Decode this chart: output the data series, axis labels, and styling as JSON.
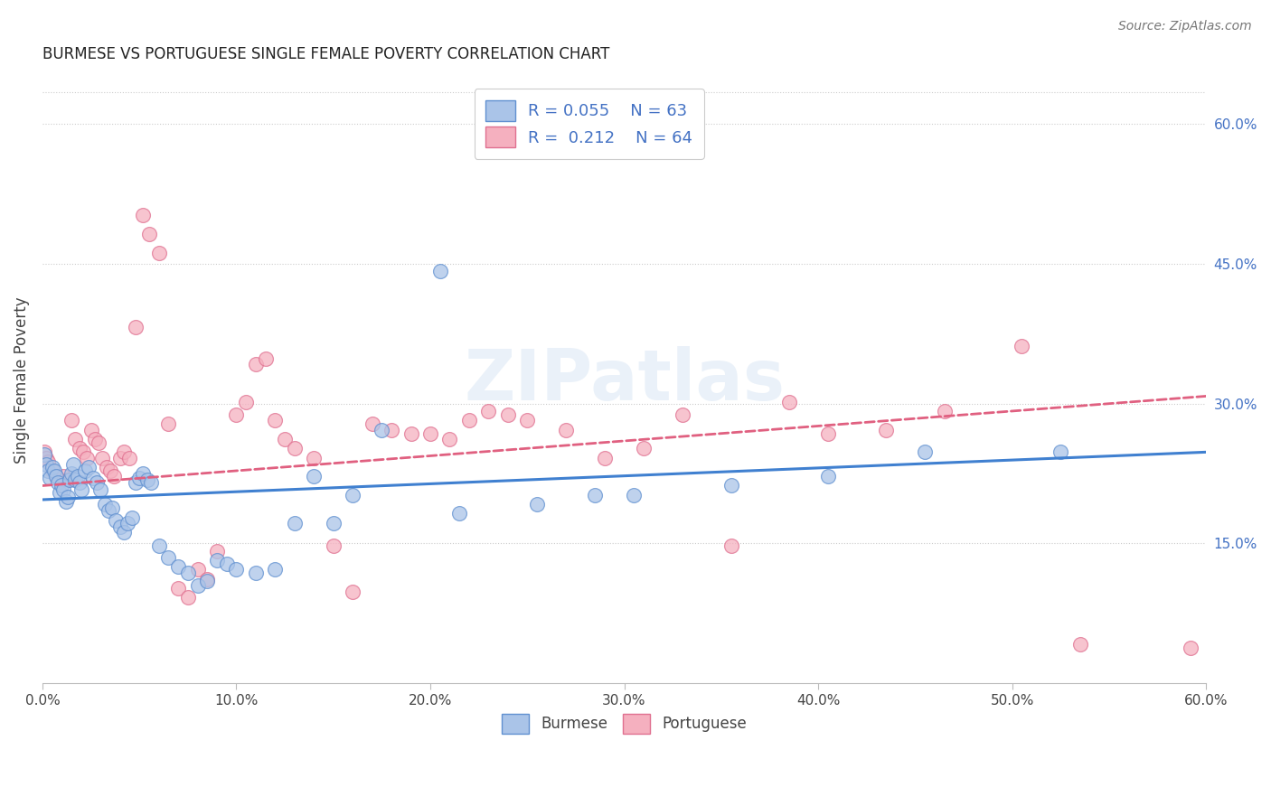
{
  "title": "BURMESE VS PORTUGUESE SINGLE FEMALE POVERTY CORRELATION CHART",
  "source": "Source: ZipAtlas.com",
  "ylabel": "Single Female Poverty",
  "right_yticks": [
    "15.0%",
    "30.0%",
    "45.0%",
    "60.0%"
  ],
  "right_ytick_vals": [
    0.15,
    0.3,
    0.45,
    0.6
  ],
  "watermark": "ZIPatlas",
  "burmese_R": "0.055",
  "burmese_N": "63",
  "portuguese_R": "0.212",
  "portuguese_N": "64",
  "burmese_color": "#aac4e8",
  "portuguese_color": "#f5b0bf",
  "burmese_edge_color": "#6090d0",
  "portuguese_edge_color": "#e07090",
  "burmese_line_color": "#4080d0",
  "portuguese_line_color": "#e06080",
  "burmese_scatter": [
    [
      0.001,
      0.245
    ],
    [
      0.002,
      0.235
    ],
    [
      0.003,
      0.228
    ],
    [
      0.004,
      0.22
    ],
    [
      0.005,
      0.232
    ],
    [
      0.006,
      0.228
    ],
    [
      0.007,
      0.222
    ],
    [
      0.008,
      0.215
    ],
    [
      0.009,
      0.205
    ],
    [
      0.01,
      0.212
    ],
    [
      0.011,
      0.208
    ],
    [
      0.012,
      0.195
    ],
    [
      0.013,
      0.2
    ],
    [
      0.014,
      0.218
    ],
    [
      0.015,
      0.225
    ],
    [
      0.016,
      0.235
    ],
    [
      0.017,
      0.218
    ],
    [
      0.018,
      0.222
    ],
    [
      0.019,
      0.215
    ],
    [
      0.02,
      0.208
    ],
    [
      0.022,
      0.228
    ],
    [
      0.024,
      0.232
    ],
    [
      0.026,
      0.22
    ],
    [
      0.028,
      0.215
    ],
    [
      0.03,
      0.208
    ],
    [
      0.032,
      0.192
    ],
    [
      0.034,
      0.185
    ],
    [
      0.036,
      0.188
    ],
    [
      0.038,
      0.175
    ],
    [
      0.04,
      0.168
    ],
    [
      0.042,
      0.162
    ],
    [
      0.044,
      0.172
    ],
    [
      0.046,
      0.178
    ],
    [
      0.048,
      0.215
    ],
    [
      0.05,
      0.22
    ],
    [
      0.052,
      0.225
    ],
    [
      0.054,
      0.218
    ],
    [
      0.056,
      0.215
    ],
    [
      0.06,
      0.148
    ],
    [
      0.065,
      0.135
    ],
    [
      0.07,
      0.125
    ],
    [
      0.075,
      0.118
    ],
    [
      0.08,
      0.105
    ],
    [
      0.085,
      0.11
    ],
    [
      0.09,
      0.132
    ],
    [
      0.095,
      0.128
    ],
    [
      0.1,
      0.122
    ],
    [
      0.11,
      0.118
    ],
    [
      0.12,
      0.122
    ],
    [
      0.13,
      0.172
    ],
    [
      0.14,
      0.222
    ],
    [
      0.15,
      0.172
    ],
    [
      0.16,
      0.202
    ],
    [
      0.175,
      0.272
    ],
    [
      0.205,
      0.442
    ],
    [
      0.215,
      0.182
    ],
    [
      0.255,
      0.192
    ],
    [
      0.285,
      0.202
    ],
    [
      0.305,
      0.202
    ],
    [
      0.355,
      0.212
    ],
    [
      0.405,
      0.222
    ],
    [
      0.455,
      0.248
    ],
    [
      0.525,
      0.248
    ]
  ],
  "portuguese_scatter": [
    [
      0.001,
      0.248
    ],
    [
      0.002,
      0.242
    ],
    [
      0.003,
      0.238
    ],
    [
      0.005,
      0.228
    ],
    [
      0.007,
      0.222
    ],
    [
      0.009,
      0.218
    ],
    [
      0.011,
      0.222
    ],
    [
      0.013,
      0.218
    ],
    [
      0.015,
      0.282
    ],
    [
      0.017,
      0.262
    ],
    [
      0.019,
      0.252
    ],
    [
      0.021,
      0.248
    ],
    [
      0.023,
      0.242
    ],
    [
      0.025,
      0.272
    ],
    [
      0.027,
      0.262
    ],
    [
      0.029,
      0.258
    ],
    [
      0.031,
      0.242
    ],
    [
      0.033,
      0.232
    ],
    [
      0.035,
      0.228
    ],
    [
      0.037,
      0.222
    ],
    [
      0.04,
      0.242
    ],
    [
      0.042,
      0.248
    ],
    [
      0.045,
      0.242
    ],
    [
      0.048,
      0.382
    ],
    [
      0.052,
      0.502
    ],
    [
      0.055,
      0.482
    ],
    [
      0.06,
      0.462
    ],
    [
      0.065,
      0.278
    ],
    [
      0.07,
      0.102
    ],
    [
      0.075,
      0.092
    ],
    [
      0.08,
      0.122
    ],
    [
      0.085,
      0.112
    ],
    [
      0.09,
      0.142
    ],
    [
      0.1,
      0.288
    ],
    [
      0.105,
      0.302
    ],
    [
      0.11,
      0.342
    ],
    [
      0.115,
      0.348
    ],
    [
      0.12,
      0.282
    ],
    [
      0.125,
      0.262
    ],
    [
      0.13,
      0.252
    ],
    [
      0.14,
      0.242
    ],
    [
      0.15,
      0.148
    ],
    [
      0.16,
      0.098
    ],
    [
      0.17,
      0.278
    ],
    [
      0.18,
      0.272
    ],
    [
      0.19,
      0.268
    ],
    [
      0.2,
      0.268
    ],
    [
      0.21,
      0.262
    ],
    [
      0.22,
      0.282
    ],
    [
      0.23,
      0.292
    ],
    [
      0.24,
      0.288
    ],
    [
      0.25,
      0.282
    ],
    [
      0.27,
      0.272
    ],
    [
      0.29,
      0.242
    ],
    [
      0.31,
      0.252
    ],
    [
      0.33,
      0.288
    ],
    [
      0.355,
      0.148
    ],
    [
      0.385,
      0.302
    ],
    [
      0.405,
      0.268
    ],
    [
      0.435,
      0.272
    ],
    [
      0.465,
      0.292
    ],
    [
      0.505,
      0.362
    ],
    [
      0.535,
      0.042
    ],
    [
      0.592,
      0.038
    ]
  ],
  "xmin": 0.0,
  "xmax": 0.6,
  "ymin": 0.0,
  "ymax": 0.65,
  "burmese_trend_x": [
    0.0,
    0.6
  ],
  "burmese_trend_y": [
    0.197,
    0.248
  ],
  "portuguese_trend_x": [
    0.0,
    0.6
  ],
  "portuguese_trend_y": [
    0.212,
    0.308
  ]
}
